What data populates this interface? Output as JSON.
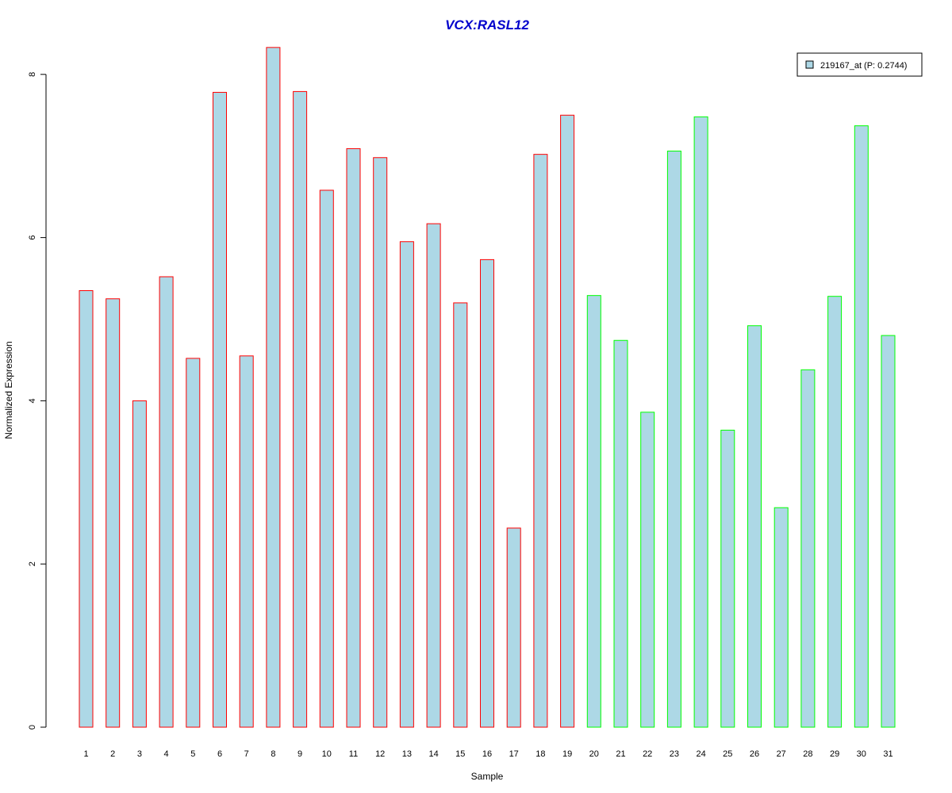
{
  "chart_data": {
    "type": "bar",
    "title": "VCX:RASL12",
    "xlabel": "Sample",
    "ylabel": "Normalized Expression",
    "categories": [
      "1",
      "2",
      "3",
      "4",
      "5",
      "6",
      "7",
      "8",
      "9",
      "10",
      "11",
      "12",
      "13",
      "14",
      "15",
      "16",
      "17",
      "18",
      "19",
      "20",
      "21",
      "22",
      "23",
      "24",
      "25",
      "26",
      "27",
      "28",
      "29",
      "30",
      "31"
    ],
    "values": [
      5.35,
      5.25,
      4.0,
      5.52,
      4.52,
      7.78,
      4.55,
      8.33,
      7.79,
      6.58,
      7.09,
      6.98,
      5.95,
      6.17,
      5.2,
      5.73,
      2.44,
      7.02,
      7.5,
      5.29,
      4.74,
      3.86,
      7.06,
      7.48,
      3.64,
      4.92,
      2.69,
      4.38,
      5.28,
      7.37,
      4.8
    ],
    "groups": [
      1,
      1,
      1,
      1,
      1,
      1,
      1,
      1,
      1,
      1,
      1,
      1,
      1,
      1,
      1,
      1,
      1,
      1,
      1,
      2,
      2,
      2,
      2,
      2,
      2,
      2,
      2,
      2,
      2,
      2,
      2
    ],
    "ylim": [
      0,
      8.4
    ],
    "yticks": [
      "0",
      "2",
      "4",
      "6",
      "8"
    ],
    "legend": {
      "label": "219167_at (P: 0.2744)",
      "position": "top-right"
    },
    "colors": {
      "fill": "#add8e6",
      "group1_border": "#ff0000",
      "group2_border": "#00ff00",
      "title": "#0000cc",
      "axis": "#000000"
    },
    "grid": false
  }
}
